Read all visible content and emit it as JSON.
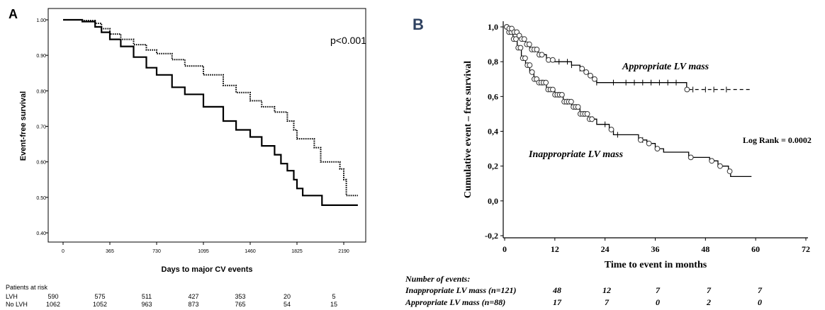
{
  "chart_data": [
    {
      "panel_label": "A",
      "type": "line",
      "chart_subtype": "kaplan-meier",
      "ylabel": "Event-free survival",
      "xlabel": "Days to major CV events",
      "annotation": "p<0.001",
      "ylim": [
        0.4,
        1.0
      ],
      "xlim": [
        0,
        2300
      ],
      "x_ticks": [
        "0",
        "365",
        "730",
        "1095",
        "1460",
        "1825",
        "2190"
      ],
      "y_ticks": [
        "1.00",
        "0.90",
        "0.80",
        "0.70",
        "0.60",
        "0.50",
        "0.40"
      ],
      "grid": false,
      "series": [
        {
          "style": "dotted",
          "points": [
            [
              0,
              1.0
            ],
            [
              150,
              0.998
            ],
            [
              250,
              0.99
            ],
            [
              300,
              0.975
            ],
            [
              365,
              0.96
            ],
            [
              450,
              0.945
            ],
            [
              550,
              0.93
            ],
            [
              650,
              0.915
            ],
            [
              730,
              0.905
            ],
            [
              850,
              0.888
            ],
            [
              950,
              0.87
            ],
            [
              1095,
              0.845
            ],
            [
              1250,
              0.815
            ],
            [
              1350,
              0.795
            ],
            [
              1460,
              0.772
            ],
            [
              1550,
              0.755
            ],
            [
              1650,
              0.74
            ],
            [
              1750,
              0.715
            ],
            [
              1800,
              0.69
            ],
            [
              1825,
              0.665
            ],
            [
              1900,
              0.665
            ],
            [
              1960,
              0.64
            ],
            [
              2010,
              0.6
            ],
            [
              2140,
              0.6
            ],
            [
              2160,
              0.58
            ],
            [
              2190,
              0.55
            ],
            [
              2210,
              0.505
            ],
            [
              2300,
              0.505
            ]
          ]
        },
        {
          "style": "solid",
          "points": [
            [
              0,
              1.0
            ],
            [
              150,
              0.995
            ],
            [
              250,
              0.98
            ],
            [
              300,
              0.965
            ],
            [
              365,
              0.945
            ],
            [
              450,
              0.925
            ],
            [
              550,
              0.895
            ],
            [
              650,
              0.865
            ],
            [
              730,
              0.845
            ],
            [
              850,
              0.81
            ],
            [
              950,
              0.79
            ],
            [
              1095,
              0.755
            ],
            [
              1250,
              0.715
            ],
            [
              1350,
              0.69
            ],
            [
              1460,
              0.67
            ],
            [
              1550,
              0.645
            ],
            [
              1650,
              0.62
            ],
            [
              1700,
              0.595
            ],
            [
              1750,
              0.575
            ],
            [
              1800,
              0.55
            ],
            [
              1825,
              0.525
            ],
            [
              1870,
              0.505
            ],
            [
              2000,
              0.505
            ],
            [
              2020,
              0.478
            ],
            [
              2300,
              0.478
            ]
          ]
        }
      ],
      "risk_table": {
        "title": "Patients at risk",
        "rows": [
          {
            "label": "LVH",
            "values": [
              "590",
              "575",
              "511",
              "427",
              "353",
              "20",
              "5"
            ]
          },
          {
            "label": "No LVH",
            "values": [
              "1062",
              "1052",
              "963",
              "873",
              "765",
              "54",
              "15"
            ]
          }
        ]
      }
    },
    {
      "panel_label": "B",
      "type": "line",
      "chart_subtype": "kaplan-meier",
      "ylabel": "Cumulative event – free survival",
      "xlabel": "Time to event in months",
      "annotation": "Log Rank = 0.0002",
      "ylim": [
        -0.2,
        1.0
      ],
      "xlim": [
        0,
        72
      ],
      "x_ticks": [
        "0",
        "12",
        "24",
        "36",
        "48",
        "60",
        "72"
      ],
      "y_ticks": [
        "1,0",
        "0,8",
        "0,6",
        "0,4",
        "0,2",
        "0,0",
        "-0,2"
      ],
      "grid": false,
      "series": [
        {
          "name": "Appropriate LV mass",
          "style": "solid-then-dashed",
          "dash_from_x": 44,
          "points": [
            [
              0,
              1.0
            ],
            [
              1,
              0.99
            ],
            [
              2,
              0.97
            ],
            [
              3,
              0.95
            ],
            [
              4,
              0.93
            ],
            [
              5,
              0.9
            ],
            [
              6,
              0.87
            ],
            [
              8,
              0.84
            ],
            [
              10,
              0.81
            ],
            [
              12,
              0.8
            ],
            [
              14,
              0.8
            ],
            [
              16,
              0.78
            ],
            [
              18,
              0.76
            ],
            [
              19,
              0.74
            ],
            [
              20,
              0.72
            ],
            [
              21,
              0.7
            ],
            [
              22,
              0.68
            ],
            [
              30,
              0.68
            ],
            [
              43,
              0.68
            ],
            [
              43.5,
              0.64
            ],
            [
              59,
              0.64
            ]
          ],
          "censor_x": [
            13,
            15,
            16,
            18,
            22,
            26,
            29,
            31,
            33,
            35,
            37,
            39,
            41,
            45,
            48,
            50,
            53
          ]
        },
        {
          "name": "Inappropriate LV mass",
          "style": "solid",
          "points": [
            [
              0,
              1.0
            ],
            [
              1,
              0.97
            ],
            [
              2,
              0.93
            ],
            [
              3,
              0.88
            ],
            [
              4,
              0.82
            ],
            [
              5,
              0.78
            ],
            [
              6,
              0.74
            ],
            [
              7,
              0.7
            ],
            [
              8,
              0.68
            ],
            [
              10,
              0.64
            ],
            [
              12,
              0.61
            ],
            [
              14,
              0.57
            ],
            [
              16,
              0.54
            ],
            [
              18,
              0.5
            ],
            [
              20,
              0.47
            ],
            [
              22,
              0.44
            ],
            [
              24,
              0.44
            ],
            [
              25,
              0.41
            ],
            [
              26,
              0.38
            ],
            [
              31,
              0.38
            ],
            [
              32,
              0.35
            ],
            [
              34,
              0.33
            ],
            [
              36,
              0.3
            ],
            [
              38,
              0.28
            ],
            [
              43,
              0.28
            ],
            [
              44,
              0.25
            ],
            [
              48,
              0.25
            ],
            [
              49,
              0.23
            ],
            [
              51,
              0.2
            ],
            [
              53,
              0.2
            ],
            [
              53.5,
              0.17
            ],
            [
              54,
              0.14
            ],
            [
              59,
              0.14
            ]
          ],
          "censor_x": [
            9,
            13,
            15,
            17,
            19,
            21,
            24,
            27,
            33
          ]
        }
      ],
      "events_table": {
        "title": "Number of events:",
        "rows": [
          {
            "label": "Inappropriate LV mass (n=121)",
            "values": [
              "48",
              "12",
              "7",
              "7",
              "7"
            ]
          },
          {
            "label": "Appropriate LV mass (n=88)",
            "values": [
              "17",
              "7",
              "0",
              "2",
              "0"
            ]
          }
        ]
      }
    }
  ]
}
